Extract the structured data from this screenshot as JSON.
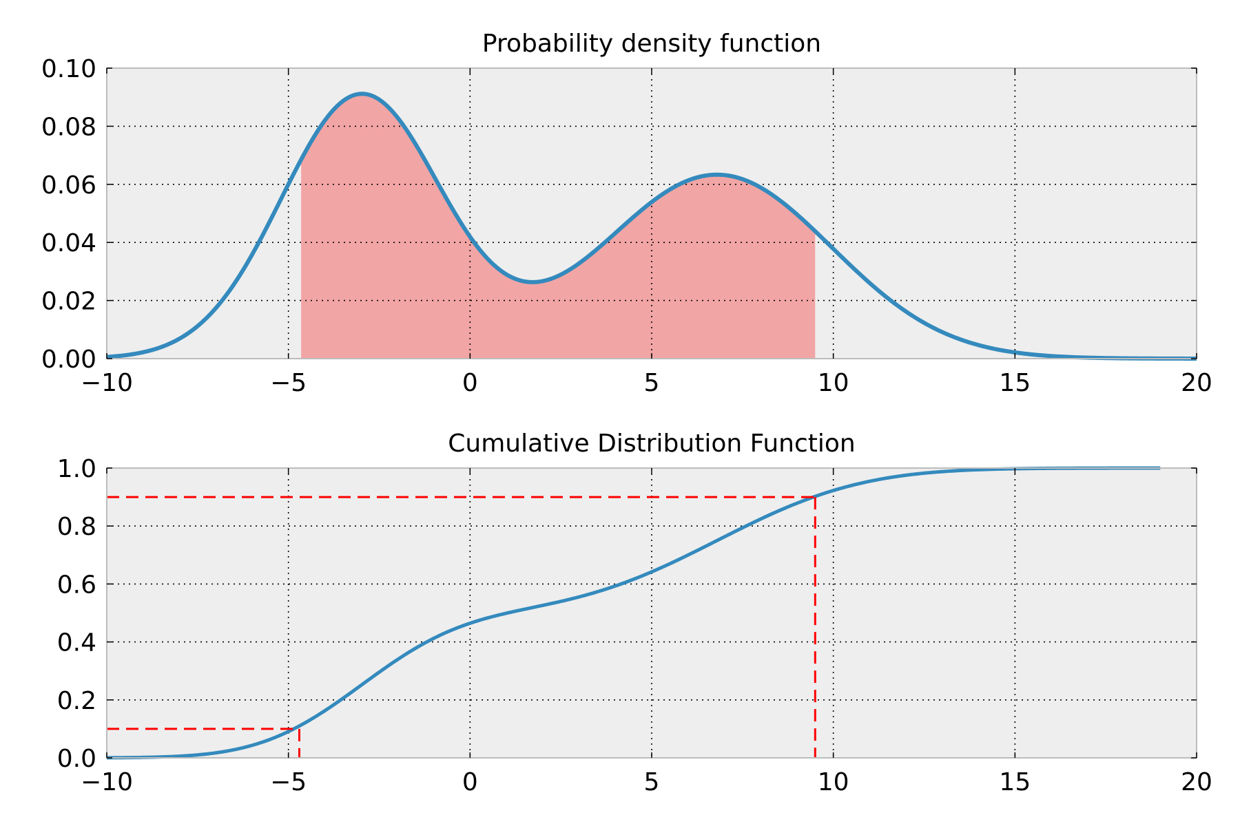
{
  "chart_data": [
    {
      "type": "line",
      "title": "Probability density function",
      "xlabel": "",
      "ylabel": "",
      "xlim": [
        -10,
        20
      ],
      "ylim": [
        0,
        0.1
      ],
      "x_ticks": [
        -10,
        -5,
        0,
        5,
        10,
        15,
        20
      ],
      "x_tick_labels": [
        "−10",
        "−5",
        "0",
        "5",
        "10",
        "15",
        "20"
      ],
      "y_ticks": [
        0,
        0.02,
        0.04,
        0.06,
        0.08,
        0.1
      ],
      "y_tick_labels": [
        "0.00",
        "0.02",
        "0.04",
        "0.06",
        "0.08",
        "0.10"
      ],
      "grid": true,
      "legend": "none",
      "mixture_components": [
        {
          "weight": 0.5,
          "mean": -3,
          "sd": 2.2
        },
        {
          "weight": 0.5,
          "mean": 6.8,
          "sd": 3.15
        }
      ],
      "shaded_region": {
        "x_from": -4.65,
        "x_to": 9.5,
        "color": "#f2a5a5"
      },
      "colors": {
        "line": "#348abd",
        "background": "#eeeeee"
      }
    },
    {
      "type": "line",
      "title": "Cumulative Distribution Function",
      "xlabel": "",
      "ylabel": "",
      "xlim": [
        -10,
        20
      ],
      "ylim": [
        0,
        1.0
      ],
      "x_ticks": [
        -10,
        -5,
        0,
        5,
        10,
        15,
        20
      ],
      "x_tick_labels": [
        "−10",
        "−5",
        "0",
        "5",
        "10",
        "15",
        "20"
      ],
      "y_ticks": [
        0,
        0.2,
        0.4,
        0.6,
        0.8,
        1.0
      ],
      "y_tick_labels": [
        "0.0",
        "0.2",
        "0.4",
        "0.6",
        "0.8",
        "1.0"
      ],
      "grid": true,
      "legend": "none",
      "x_end": 19,
      "quantile_markers": [
        {
          "x": -4.7,
          "y": 0.1
        },
        {
          "x": 9.5,
          "y": 0.9
        }
      ],
      "colors": {
        "line": "#348abd",
        "marker": "#ff0000",
        "background": "#eeeeee"
      }
    }
  ]
}
